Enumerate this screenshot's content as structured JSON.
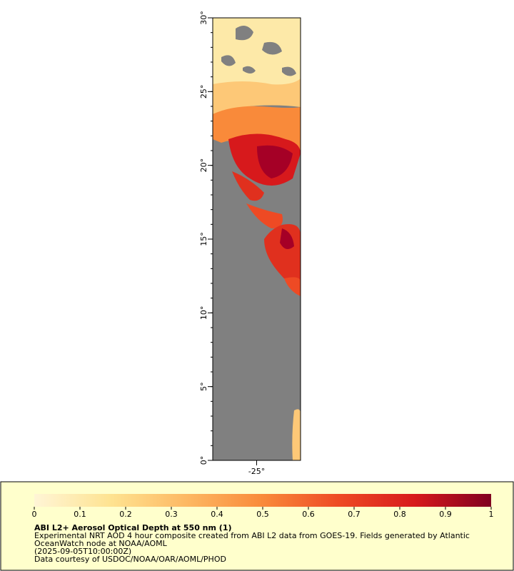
{
  "map": {
    "ylim": [
      0,
      30
    ],
    "yticks": [
      {
        "value": 0,
        "label": "0°"
      },
      {
        "value": 5,
        "label": "5°"
      },
      {
        "value": 10,
        "label": "10°"
      },
      {
        "value": 15,
        "label": "15°"
      },
      {
        "value": 20,
        "label": "20°"
      },
      {
        "value": 25,
        "label": "25°"
      },
      {
        "value": 30,
        "label": "30°"
      }
    ],
    "xlim": [
      -28,
      -22
    ],
    "xticks": [
      {
        "value": -25,
        "label": "-25°"
      }
    ]
  },
  "colorbar": {
    "range": [
      0,
      1
    ],
    "ticks": [
      0,
      0.1,
      0.2,
      0.3,
      0.4,
      0.5,
      0.6,
      0.7,
      0.8,
      0.9,
      1
    ],
    "colors": [
      "#fff5d6",
      "#fee391",
      "#fdb863",
      "#f98a3a",
      "#ee4a24",
      "#d7191c",
      "#800020"
    ]
  },
  "legend": {
    "title": "ABI L2+ Aerosol Optical Depth at 550 nm (1)",
    "lines": [
      "Experimental NRT AOD 4 hour composite created from ABI L2 data from GOES-19. Fields generated by Atlantic",
      "OceanWatch node at NOAA/AOML",
      "(2025-09-05T10:00:00Z)",
      "Data courtesy of USDOC/NOAA/OAR/AOML/PHOD"
    ]
  }
}
